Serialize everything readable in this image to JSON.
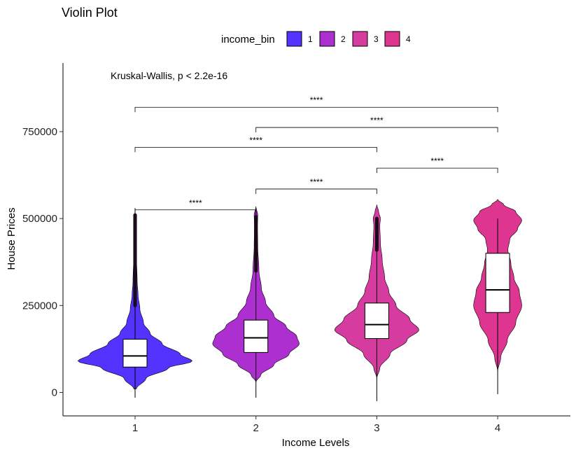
{
  "chart_data": {
    "type": "violin",
    "title": "Violin Plot",
    "xlabel": "Income Levels",
    "ylabel": "House Prices",
    "ylim": [
      -70000,
      950000
    ],
    "y_ticks": [
      0,
      250000,
      500000,
      750000
    ],
    "y_tick_labels": [
      "0",
      "250000",
      "500000",
      "750000"
    ],
    "categories": [
      "1",
      "2",
      "3",
      "4"
    ],
    "legend": {
      "title": "income_bin",
      "position": "top",
      "entries": [
        "1",
        "2",
        "3",
        "4"
      ]
    },
    "colors": [
      "#5533ff",
      "#ae2fcf",
      "#d63ba0",
      "#de3690"
    ],
    "annotation": "Kruskal-Wallis, p < 2.2e-16",
    "boxes": [
      {
        "category": "1",
        "q1": 73000,
        "median": 105000,
        "q3": 153000,
        "whisker_low": -15000,
        "whisker_high": 530000
      },
      {
        "category": "2",
        "q1": 115000,
        "median": 157000,
        "q3": 208000,
        "whisker_low": -15000,
        "whisker_high": 530000
      },
      {
        "category": "3",
        "q1": 155000,
        "median": 195000,
        "q3": 257000,
        "whisker_low": -25000,
        "whisker_high": 505000
      },
      {
        "category": "4",
        "q1": 230000,
        "median": 295000,
        "q3": 400000,
        "whisker_low": -5000,
        "whisker_high": 500000
      }
    ],
    "outliers": [
      {
        "category": "1",
        "from": 250000,
        "to": 510000
      },
      {
        "category": "2",
        "from": 350000,
        "to": 505000
      },
      {
        "category": "3",
        "from": 410000,
        "to": 500000
      }
    ],
    "violins": [
      {
        "category": "1",
        "min": 10000,
        "max": 520000,
        "profile": [
          [
            10000,
            0.02
          ],
          [
            40000,
            0.18
          ],
          [
            70000,
            0.55
          ],
          [
            90000,
            0.95
          ],
          [
            110000,
            0.75
          ],
          [
            140000,
            0.45
          ],
          [
            170000,
            0.25
          ],
          [
            200000,
            0.14
          ],
          [
            240000,
            0.08
          ],
          [
            280000,
            0.05
          ],
          [
            320000,
            0.035
          ],
          [
            380000,
            0.025
          ],
          [
            450000,
            0.02
          ],
          [
            500000,
            0.02
          ],
          [
            520000,
            0
          ]
        ]
      },
      {
        "category": "2",
        "min": 30000,
        "max": 535000,
        "profile": [
          [
            30000,
            0
          ],
          [
            50000,
            0.08
          ],
          [
            80000,
            0.3
          ],
          [
            110000,
            0.55
          ],
          [
            140000,
            0.72
          ],
          [
            160000,
            0.68
          ],
          [
            190000,
            0.5
          ],
          [
            220000,
            0.3
          ],
          [
            260000,
            0.16
          ],
          [
            300000,
            0.09
          ],
          [
            350000,
            0.05
          ],
          [
            420000,
            0.03
          ],
          [
            480000,
            0.025
          ],
          [
            510000,
            0.03
          ],
          [
            535000,
            0
          ]
        ]
      },
      {
        "category": "3",
        "min": 40000,
        "max": 540000,
        "profile": [
          [
            40000,
            0
          ],
          [
            70000,
            0.05
          ],
          [
            110000,
            0.22
          ],
          [
            150000,
            0.5
          ],
          [
            180000,
            0.7
          ],
          [
            210000,
            0.55
          ],
          [
            250000,
            0.32
          ],
          [
            290000,
            0.2
          ],
          [
            330000,
            0.13
          ],
          [
            380000,
            0.09
          ],
          [
            430000,
            0.06
          ],
          [
            480000,
            0.05
          ],
          [
            500000,
            0.06
          ],
          [
            520000,
            0.03
          ],
          [
            540000,
            0
          ]
        ]
      },
      {
        "category": "4",
        "min": 60000,
        "max": 555000,
        "profile": [
          [
            60000,
            0
          ],
          [
            100000,
            0.05
          ],
          [
            150000,
            0.16
          ],
          [
            200000,
            0.3
          ],
          [
            250000,
            0.4
          ],
          [
            290000,
            0.36
          ],
          [
            330000,
            0.27
          ],
          [
            370000,
            0.22
          ],
          [
            410000,
            0.17
          ],
          [
            440000,
            0.2
          ],
          [
            470000,
            0.33
          ],
          [
            495000,
            0.4
          ],
          [
            520000,
            0.3
          ],
          [
            540000,
            0.1
          ],
          [
            555000,
            0
          ]
        ]
      }
    ],
    "comparisons": [
      {
        "from": "1",
        "to": "2",
        "y": 525000,
        "label": "****"
      },
      {
        "from": "2",
        "to": "3",
        "y": 585000,
        "label": "****"
      },
      {
        "from": "3",
        "to": "4",
        "y": 645000,
        "label": "****"
      },
      {
        "from": "1",
        "to": "3",
        "y": 705000,
        "label": "****"
      },
      {
        "from": "2",
        "to": "4",
        "y": 762000,
        "label": "****"
      },
      {
        "from": "1",
        "to": "4",
        "y": 820000,
        "label": "****"
      }
    ],
    "grid": false
  }
}
